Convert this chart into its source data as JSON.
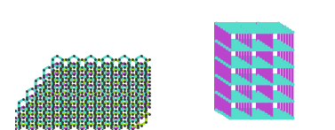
{
  "bg_color": "#ffffff",
  "purple": "#BB44CC",
  "green": "#99DD11",
  "cyan": "#55DDCC",
  "dark": "#333333",
  "fig_width": 3.77,
  "fig_height": 1.47,
  "dpi": 100
}
